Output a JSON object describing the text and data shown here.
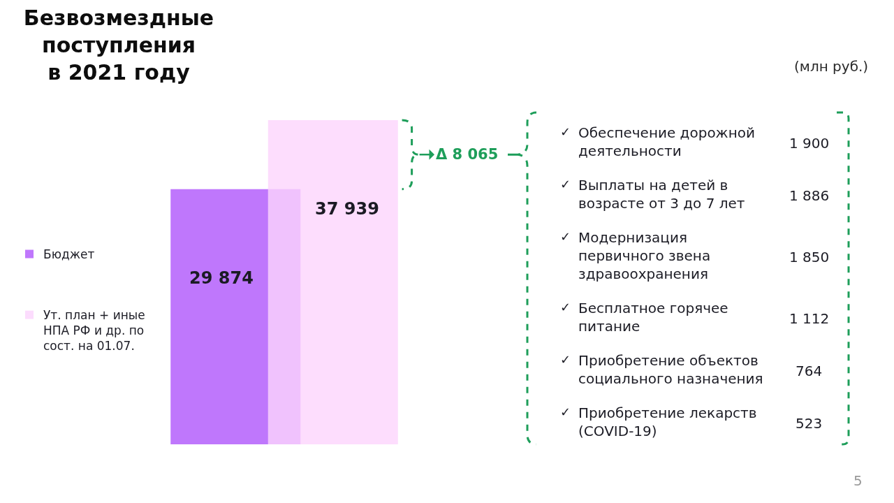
{
  "chart_data": [
    {
      "type": "bar",
      "title": "Безвозмездные поступления в 2021 году",
      "categories": [
        null
      ],
      "series": [
        {
          "name": "Бюджет",
          "color": "#bf77fc",
          "values": [
            29874
          ]
        },
        {
          "name": "Ут. план + иные НПА РФ и др. по сост. на 01.07.",
          "color": "#fcd4fd",
          "values": [
            37939
          ]
        }
      ],
      "data_labels": true,
      "legend": "left",
      "annotations": [
        "Δ 8 065"
      ]
    },
    {
      "type": "other",
      "categories": [
        "✓ Обеспечение дорожной деятельности",
        "✓ Выплаты на детей в возрасте от 3 до 7 лет",
        "✓ Модернизация первичного звена здравоохранения",
        "✓ Бесплатное горячее питание",
        "✓ Приобретение объектов социального назначения",
        "✓ Приобретение лекарств (COVID-19)"
      ],
      "values": [
        1900,
        1886,
        1850,
        1112,
        764,
        523
      ],
      "data_labels": true,
      "annotations": [
        "(млн руб.)",
        "5"
      ]
    }
  ]
}
